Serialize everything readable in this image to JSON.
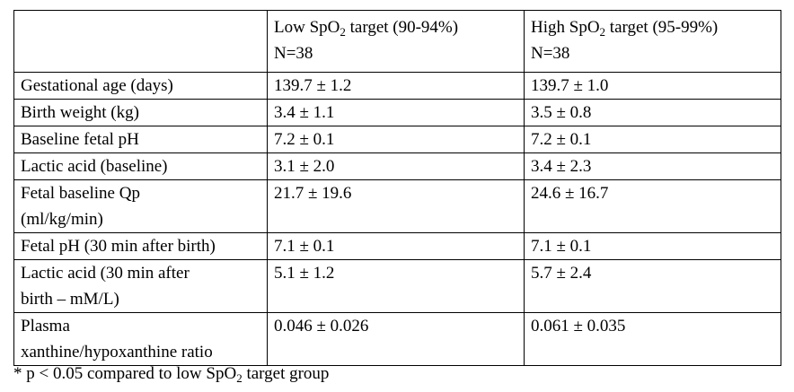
{
  "table": {
    "header": {
      "col1": "",
      "col2_prefix": "Low SpO",
      "col2_sub": "2",
      "col2_suffix": " target (90-94%)",
      "col2_n": "N=38",
      "col3_prefix": "High SpO",
      "col3_sub": "2",
      "col3_suffix": " target (95-99%)",
      "col3_n": "N=38"
    },
    "rows": [
      {
        "label": "Gestational age (days)",
        "low": "139.7 ± 1.2",
        "high": "139.7 ± 1.0"
      },
      {
        "label": "Birth weight (kg)",
        "low": "3.4 ± 1.1",
        "high": "3.5 ± 0.8"
      },
      {
        "label": "Baseline fetal pH",
        "low": "7.2 ± 0.1",
        "high": "7.2 ± 0.1"
      },
      {
        "label": "Lactic acid (baseline)",
        "low": "3.1 ± 2.0",
        "high": "3.4 ± 2.3"
      },
      {
        "label_line1": "Fetal baseline Qp",
        "label_line2": "(ml/kg/min)",
        "low": "21.7 ± 19.6",
        "high": "24.6 ± 16.7"
      },
      {
        "label": "Fetal pH (30 min after birth)",
        "low": "7.1 ± 0.1",
        "high": "7.1 ± 0.1"
      },
      {
        "label_line1": "Lactic acid (30 min after",
        "label_line2": "birth – mM/L)",
        "low": "5.1 ± 1.2",
        "high": "5.7 ± 2.4"
      },
      {
        "label_line1": "Plasma",
        "label_line2": "xanthine/hypoxanthine ratio",
        "low": "0.046 ± 0.026",
        "high": "0.061 ± 0.035"
      }
    ]
  },
  "footnote": {
    "prefix": "* p < 0.05 compared to low SpO",
    "sub": "2",
    "suffix": " target group"
  }
}
